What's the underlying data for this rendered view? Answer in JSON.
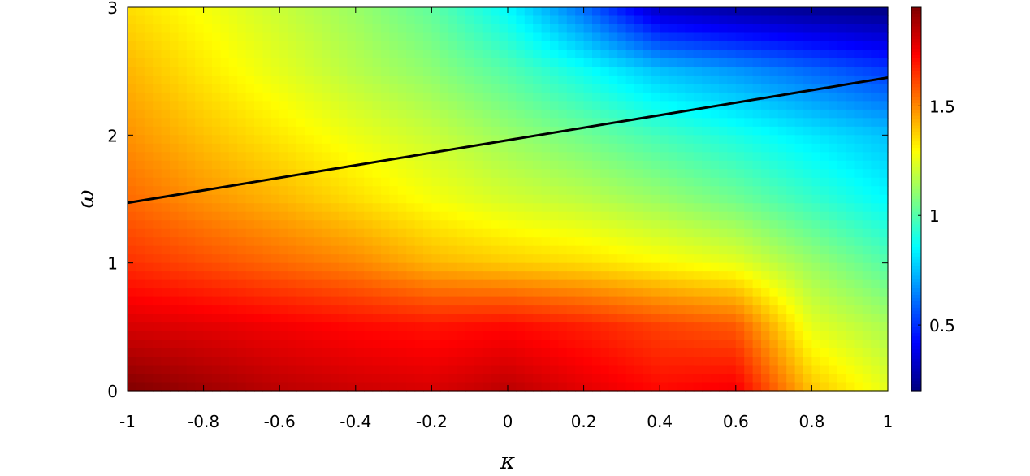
{
  "chart_data": {
    "type": "heatmap",
    "title": "",
    "xlabel": "κ",
    "ylabel": "ω",
    "xlim": [
      -1,
      1
    ],
    "ylim": [
      0,
      3
    ],
    "x_ticks": [
      -1,
      -0.8,
      -0.6,
      -0.4,
      -0.2,
      0,
      0.2,
      0.4,
      0.6,
      0.8,
      1
    ],
    "x_tick_labels": [
      "-1",
      "-0.8",
      "-0.6",
      "-0.4",
      "-0.2",
      "0",
      "0.2",
      "0.4",
      "0.6",
      "0.8",
      "1"
    ],
    "y_ticks": [
      0,
      1,
      2,
      3
    ],
    "y_tick_labels": [
      "0",
      "1",
      "2",
      "3"
    ],
    "colorbar": {
      "colormap": "jet",
      "range": [
        0.2,
        1.95
      ],
      "ticks": [
        0.5,
        1,
        1.5
      ],
      "tick_labels": [
        "0.5",
        "1",
        "1.5"
      ]
    },
    "grid_kappa": [
      -1,
      -0.8,
      -0.6,
      -0.4,
      -0.2,
      0,
      0.2,
      0.4,
      0.6,
      0.8,
      1
    ],
    "grid_omega": [
      0,
      0.5,
      1,
      1.5,
      2,
      2.5,
      3
    ],
    "z": [
      [
        1.95,
        1.9,
        1.85,
        1.82,
        1.8,
        1.85,
        1.78,
        1.72,
        1.75,
        1.4,
        1.25
      ],
      [
        1.8,
        1.78,
        1.75,
        1.72,
        1.7,
        1.72,
        1.68,
        1.62,
        1.58,
        1.25,
        1.15
      ],
      [
        1.65,
        1.6,
        1.55,
        1.5,
        1.42,
        1.38,
        1.35,
        1.3,
        1.25,
        1.12,
        1.0
      ],
      [
        1.55,
        1.48,
        1.42,
        1.35,
        1.28,
        1.22,
        1.18,
        1.12,
        1.05,
        0.95,
        0.85
      ],
      [
        1.48,
        1.4,
        1.33,
        1.26,
        1.2,
        1.12,
        1.05,
        0.97,
        0.9,
        0.82,
        0.75
      ],
      [
        1.42,
        1.33,
        1.25,
        1.17,
        1.1,
        1.0,
        0.88,
        0.75,
        0.68,
        0.6,
        0.52
      ],
      [
        1.35,
        1.28,
        1.2,
        1.12,
        1.02,
        0.85,
        0.6,
        0.3,
        0.25,
        0.22,
        0.2
      ]
    ],
    "overlay_line": {
      "x": [
        -1,
        1
      ],
      "y": [
        1.47,
        2.45
      ],
      "color": "#000000"
    }
  }
}
